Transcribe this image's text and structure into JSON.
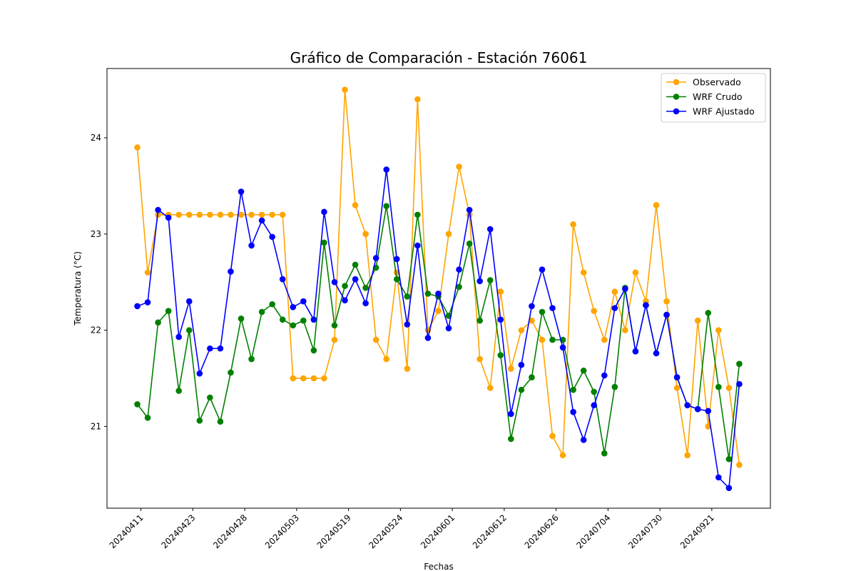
{
  "chart_data": {
    "type": "line",
    "title": "Gráfico de Comparación - Estación 76061",
    "xlabel": "Fechas",
    "ylabel": "Temperatura (°C)",
    "ylim": [
      20.15,
      24.72
    ],
    "yticks": [
      21,
      22,
      23,
      24
    ],
    "xtick_labels": [
      "20240411",
      "20240423",
      "20240428",
      "20240503",
      "20240519",
      "20240524",
      "20240601",
      "20240612",
      "20240626",
      "20240704",
      "20240730",
      "20240921"
    ],
    "xtick_every": 5,
    "grid": false,
    "legend_position": "upper-right",
    "series": [
      {
        "name": "Observado",
        "color": "#ffa500",
        "values": [
          23.9,
          22.6,
          23.2,
          23.2,
          23.2,
          23.2,
          23.2,
          23.2,
          23.2,
          23.2,
          23.2,
          23.2,
          23.2,
          23.2,
          23.2,
          21.5,
          21.5,
          21.5,
          21.5,
          21.9,
          24.5,
          23.3,
          23.0,
          21.9,
          21.7,
          22.6,
          21.6,
          24.4,
          22.0,
          22.2,
          23.0,
          23.7,
          23.2,
          21.7,
          21.4,
          22.4,
          21.6,
          22.0,
          22.1,
          21.9,
          20.9,
          20.7,
          23.1,
          22.6,
          22.2,
          21.9,
          22.4,
          22.0,
          22.6,
          22.3,
          23.3,
          22.3,
          21.4,
          20.7,
          22.1,
          21.0,
          22.0,
          21.4,
          20.6
        ]
      },
      {
        "name": "WRF Crudo",
        "color": "#008000",
        "values": [
          21.23,
          21.09,
          22.08,
          22.2,
          21.37,
          22.0,
          21.06,
          21.3,
          21.05,
          21.56,
          22.12,
          21.7,
          22.19,
          22.27,
          22.11,
          22.05,
          22.1,
          21.79,
          22.91,
          22.05,
          22.46,
          22.68,
          22.44,
          22.65,
          23.29,
          22.53,
          22.35,
          23.2,
          22.38,
          22.35,
          22.15,
          22.45,
          22.9,
          22.1,
          22.52,
          21.74,
          20.87,
          21.38,
          21.51,
          22.19,
          21.9,
          21.9,
          21.38,
          21.58,
          21.36,
          20.72,
          21.41,
          22.44,
          21.78,
          22.26,
          21.76,
          22.16,
          21.51,
          21.22,
          21.18,
          22.18,
          21.41,
          20.66,
          21.65
        ]
      },
      {
        "name": "WRF Ajustado",
        "color": "#0000ff",
        "values": [
          22.25,
          22.29,
          23.25,
          23.17,
          21.93,
          22.3,
          21.55,
          21.81,
          21.81,
          22.61,
          23.44,
          22.88,
          23.14,
          22.97,
          22.53,
          22.24,
          22.3,
          22.11,
          23.23,
          22.5,
          22.31,
          22.53,
          22.28,
          22.75,
          23.67,
          22.74,
          22.06,
          22.88,
          21.92,
          22.38,
          22.02,
          22.63,
          23.25,
          22.51,
          23.05,
          22.11,
          21.13,
          21.64,
          22.25,
          22.63,
          22.23,
          21.82,
          21.15,
          20.86,
          21.22,
          21.53,
          22.23,
          22.43,
          21.78,
          22.26,
          21.76,
          22.16,
          21.51,
          21.22,
          21.18,
          21.16,
          20.47,
          20.36,
          21.44
        ]
      }
    ]
  }
}
